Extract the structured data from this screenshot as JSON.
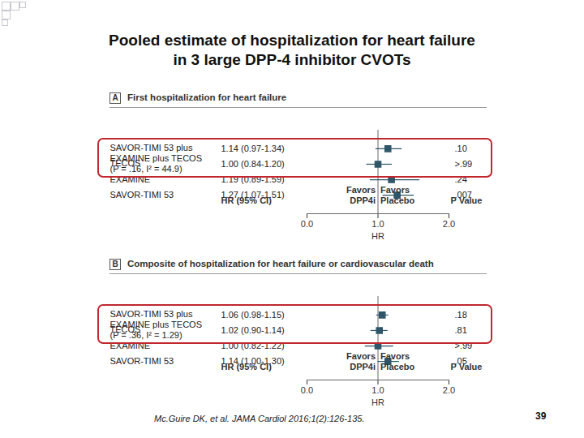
{
  "title": "Pooled estimate of hospitalization for heart failure\nin 3 large DPP-4 inhibitor CVOTs",
  "footnote": "Mc.Guire DK, et al. JAMA Cardiol 2016;1(2):126-135.",
  "page": "39",
  "chart_data": [
    {
      "type": "forest",
      "panel": "A",
      "title": "First hospitalization for heart failure",
      "column_headers": {
        "estimate": "HR (95% CI)",
        "favors_left": "Favors\nDPP4i",
        "favors_right": "Favors\nPlacebo",
        "p": "P Value"
      },
      "categories": [
        "SAVOR-TIMI 53",
        "EXAMINE",
        "TECOS",
        "SAVOR-TIMI 53 plus\nEXAMINE plus TECOS"
      ],
      "values": [
        1.27,
        1.19,
        1.0,
        1.14
      ],
      "lower": [
        1.07,
        0.89,
        0.84,
        0.97
      ],
      "upper": [
        1.51,
        1.59,
        1.2,
        1.34
      ],
      "value_labels": [
        "1.27 (1.07-1.51)",
        "1.19 (0.89-1.59)",
        "1.00 (0.84-1.20)",
        "1.14 (0.97-1.34)"
      ],
      "p_values": [
        ".007",
        ".24",
        ">.99",
        ".10"
      ],
      "heterogeneity": "(P = .16, I² = 44.9)",
      "xlabel": "HR",
      "xlim": [
        0,
        2
      ],
      "xticks": [
        0,
        1,
        2
      ],
      "reference": 1,
      "color": "#2e5668"
    },
    {
      "type": "forest",
      "panel": "B",
      "title": "Composite of hospitalization for heart failure or cardiovascular death",
      "column_headers": {
        "estimate": "HR (95% CI)",
        "favors_left": "Favors\nDPP4i",
        "favors_right": "Favors\nPlacebo",
        "p": "P Value"
      },
      "categories": [
        "SAVOR-TIMI 53",
        "EXAMINE",
        "TECOS",
        "SAVOR-TIMI 53 plus\nEXAMINE plus TECOS"
      ],
      "values": [
        1.14,
        1.0,
        1.02,
        1.06
      ],
      "lower": [
        1.0,
        0.82,
        0.9,
        0.98
      ],
      "upper": [
        1.3,
        1.22,
        1.14,
        1.15
      ],
      "value_labels": [
        "1.14 (1.00-1.30)",
        "1.00 (0.82-1.22)",
        "1.02 (0.90-1.14)",
        "1.06 (0.98-1.15)"
      ],
      "p_values": [
        ".05",
        ">.99",
        ".81",
        ".18"
      ],
      "heterogeneity": "(P = .36, I² = 1.29)",
      "xlabel": "HR",
      "xlim": [
        0,
        2
      ],
      "xticks": [
        0,
        1,
        2
      ],
      "reference": 1,
      "color": "#2e5668"
    }
  ]
}
